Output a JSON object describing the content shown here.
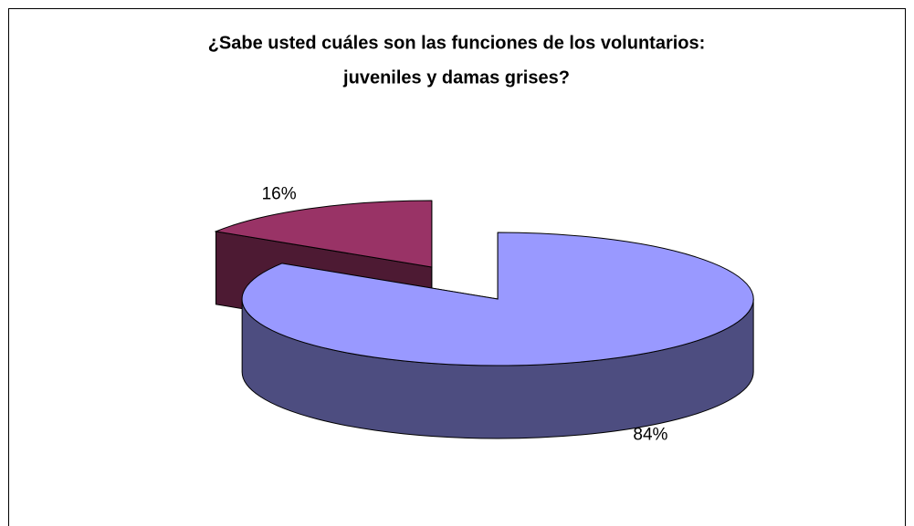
{
  "chart_data": {
    "type": "pie",
    "title": [
      "¿Sabe usted cuáles son las funciones de los voluntarios:",
      "juveniles y damas grises?"
    ],
    "values": [
      84,
      16
    ],
    "value_labels": [
      "84%",
      "16%"
    ],
    "colors": [
      "#9999ff",
      "#993366"
    ]
  }
}
